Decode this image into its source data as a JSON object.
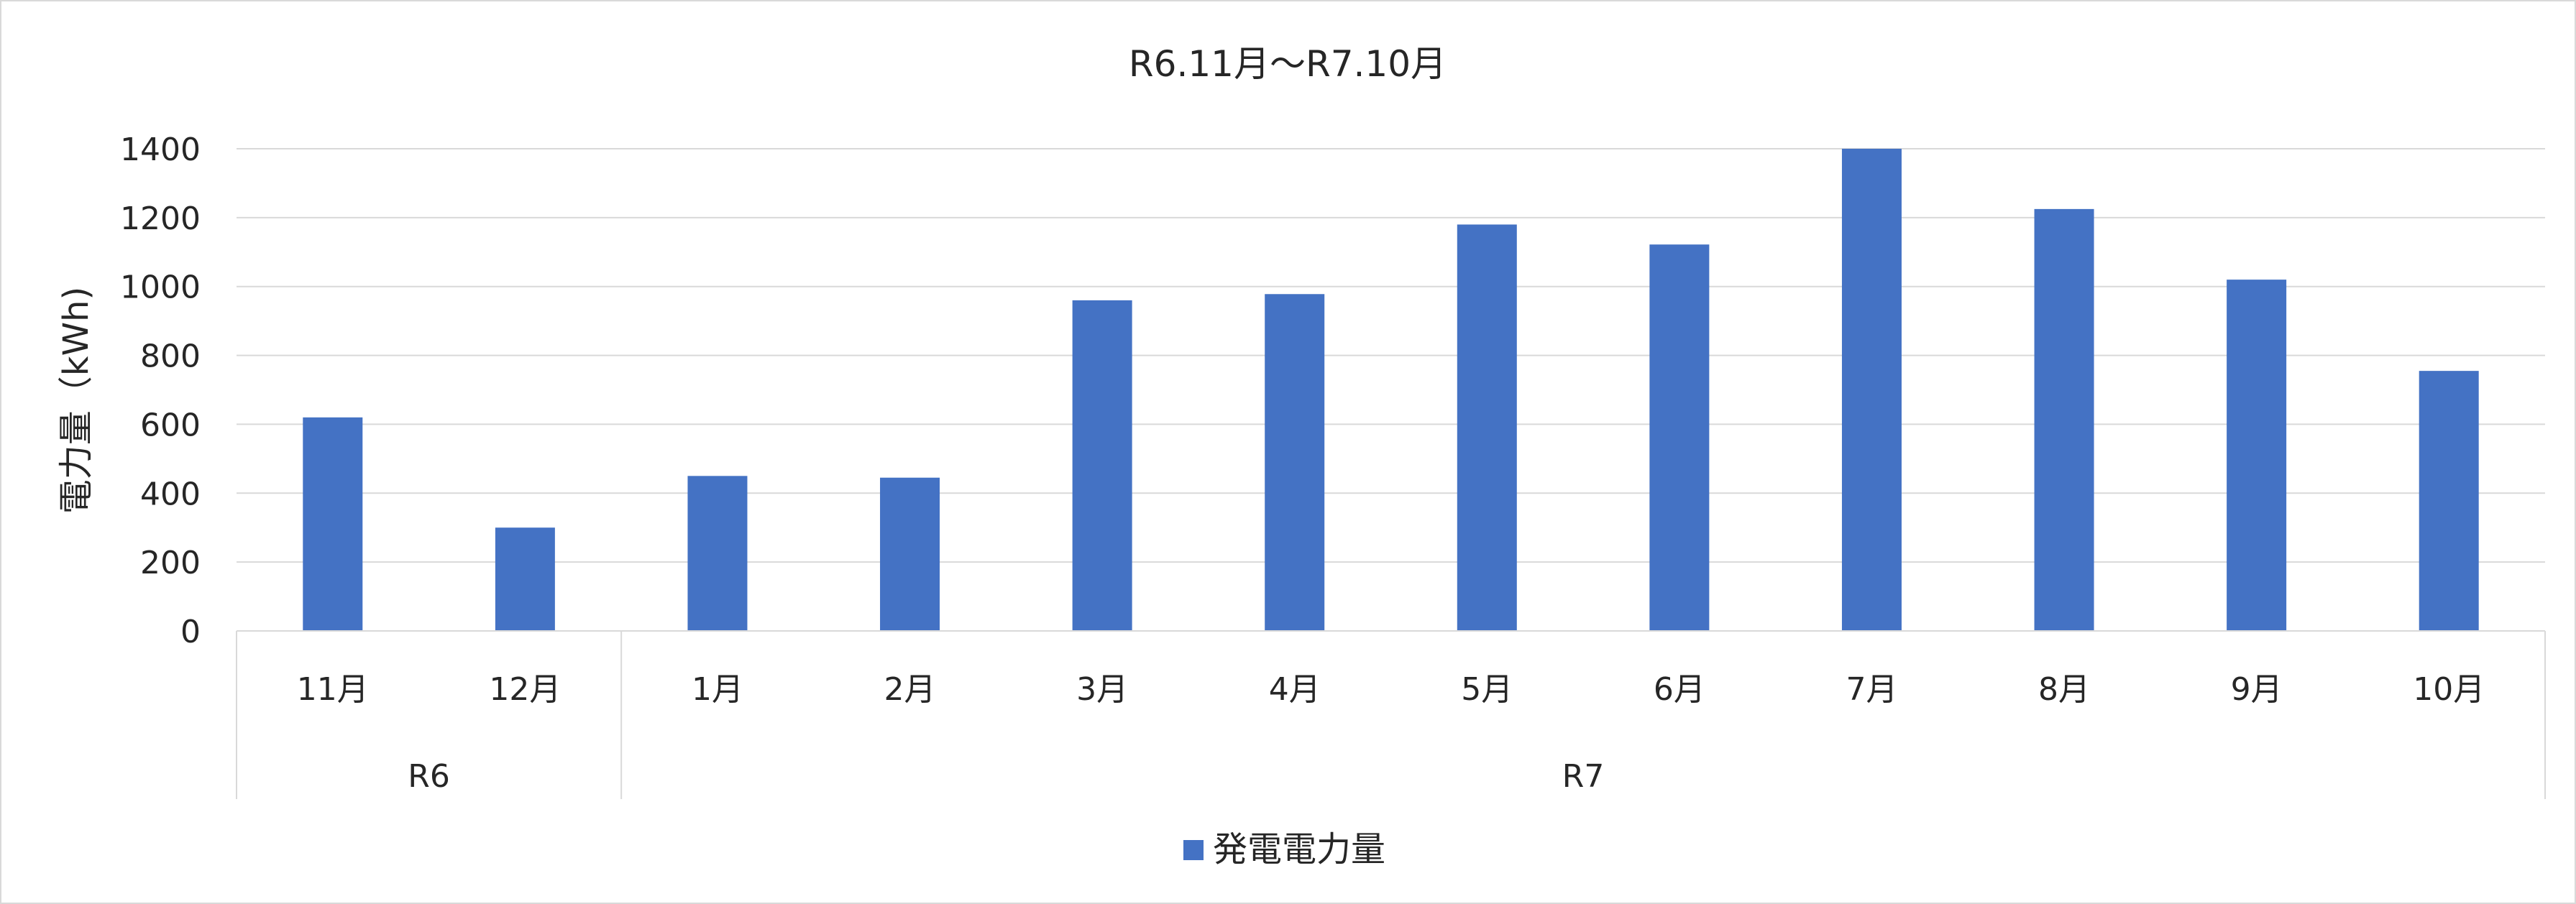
{
  "chart_data": {
    "type": "bar",
    "title": "R6.11月～R7.10月",
    "xlabel": "",
    "ylabel": "電力量（kWh)",
    "ylim": [
      0,
      1400
    ],
    "yticks": [
      0,
      200,
      400,
      600,
      800,
      1000,
      1200,
      1400
    ],
    "grid": true,
    "legend_position": "bottom",
    "categories": [
      "11月",
      "12月",
      "1月",
      "2月",
      "3月",
      "4月",
      "5月",
      "6月",
      "7月",
      "8月",
      "9月",
      "10月"
    ],
    "groups": [
      {
        "label": "R6",
        "categories": [
          "11月",
          "12月"
        ]
      },
      {
        "label": "R7",
        "categories": [
          "1月",
          "2月",
          "3月",
          "4月",
          "5月",
          "6月",
          "7月",
          "8月",
          "9月",
          "10月"
        ]
      }
    ],
    "series": [
      {
        "name": "発電電力量",
        "color": "#4472c4",
        "values": [
          620,
          300,
          450,
          445,
          960,
          978,
          1180,
          1122,
          1400,
          1225,
          1020,
          755
        ]
      }
    ]
  },
  "colors": {
    "gridline": "#d9d9d9",
    "axis": "#d9d9d9",
    "text": "#262626",
    "border": "#d9d9d9"
  }
}
